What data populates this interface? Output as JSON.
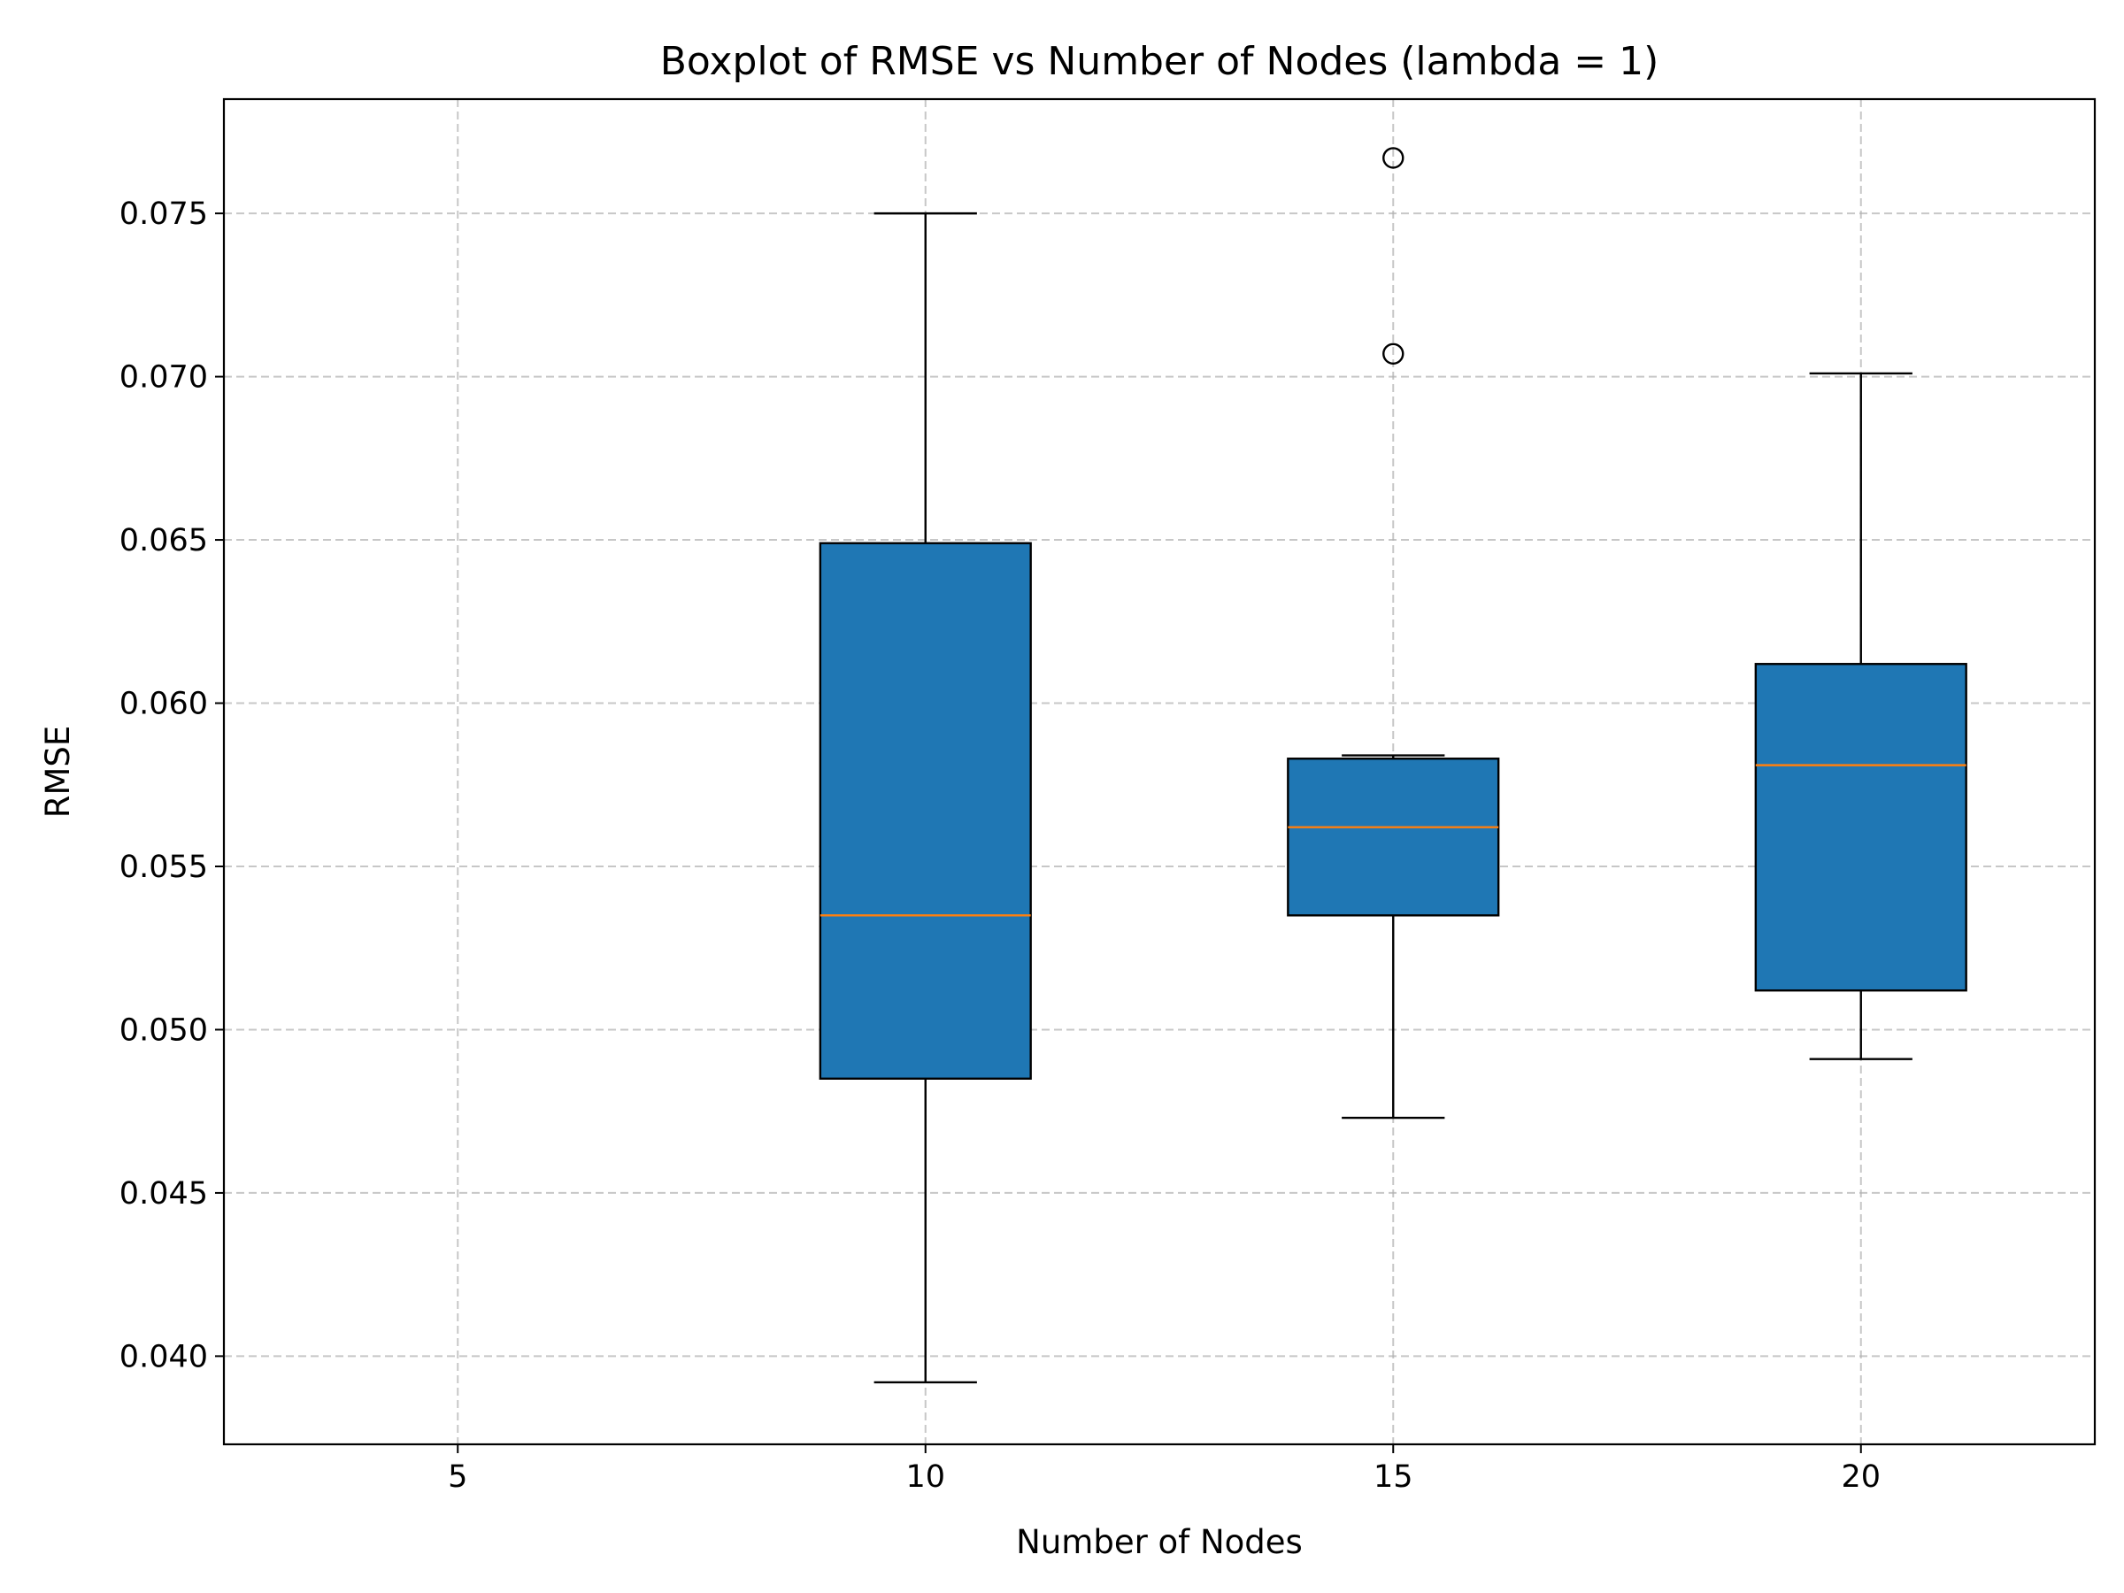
{
  "chart_data": {
    "type": "boxplot",
    "title": "Boxplot of RMSE vs Number of Nodes (lambda = 1)",
    "xlabel": "Number of Nodes",
    "ylabel": "RMSE",
    "xlim": [
      2.5,
      22.5
    ],
    "ylim": [
      0.0373,
      0.0785
    ],
    "xticks": [
      5,
      10,
      15,
      20
    ],
    "xtick_labels": [
      "5",
      "10",
      "15",
      "20"
    ],
    "yticks": [
      0.04,
      0.045,
      0.05,
      0.055,
      0.06,
      0.065,
      0.07,
      0.075
    ],
    "ytick_labels": [
      "0.040",
      "0.045",
      "0.050",
      "0.055",
      "0.060",
      "0.065",
      "0.070",
      "0.075"
    ],
    "grid": true,
    "box_color": "#1f77b4",
    "median_color": "#ff7f0e",
    "boxes": [
      {
        "x": 10,
        "whisker_low": 0.0392,
        "q1": 0.0485,
        "median": 0.0535,
        "q3": 0.0649,
        "whisker_high": 0.075,
        "outliers": []
      },
      {
        "x": 15,
        "whisker_low": 0.0473,
        "q1": 0.0535,
        "median": 0.0562,
        "q3": 0.0583,
        "whisker_high": 0.0584,
        "outliers": [
          0.0707,
          0.0767
        ]
      },
      {
        "x": 20,
        "whisker_low": 0.0491,
        "q1": 0.0512,
        "median": 0.0581,
        "q3": 0.0612,
        "whisker_high": 0.0701,
        "outliers": []
      }
    ]
  }
}
